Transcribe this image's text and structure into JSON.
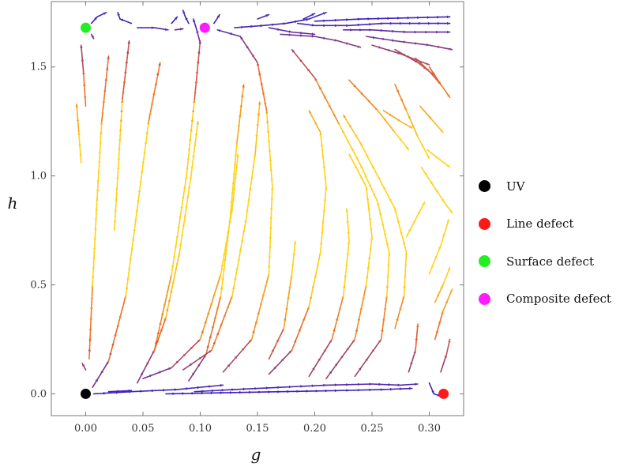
{
  "chart_data": {
    "type": "stream",
    "xlabel": "g",
    "ylabel": "h",
    "xlim": [
      -0.03,
      0.33
    ],
    "ylim": [
      -0.1,
      1.8
    ],
    "x_ticks": [
      0.0,
      0.05,
      0.1,
      0.15,
      0.2,
      0.25,
      0.3
    ],
    "x_tick_labels": [
      "0.00",
      "0.05",
      "0.10",
      "0.15",
      "0.20",
      "0.25",
      "0.30"
    ],
    "y_ticks": [
      0.0,
      0.5,
      1.0,
      1.5
    ],
    "y_tick_labels": [
      "0.0",
      "0.5",
      "1.0",
      "1.5"
    ],
    "color_scale": {
      "low": "#3a1fc0",
      "mid": "#e8622c",
      "high": "#ffd21a"
    },
    "fixed_points": [
      {
        "name": "UV",
        "g": 0.0,
        "h": 0.0,
        "color": "#000000"
      },
      {
        "name": "Line defect",
        "g": 0.3125,
        "h": 0.0,
        "color": "#ff1a1a"
      },
      {
        "name": "Surface defect",
        "g": 0.0,
        "h": 1.68,
        "color": "#22ee22"
      },
      {
        "name": "Composite defect",
        "g": 0.104,
        "h": 1.68,
        "color": "#ff1aff"
      }
    ],
    "legend": {
      "position": "right",
      "items": [
        {
          "label": "UV",
          "color": "#000000"
        },
        {
          "label": "Line defect",
          "color": "#ff1a1a"
        },
        {
          "label": "Surface defect",
          "color": "#22ee22"
        },
        {
          "label": "Composite defect",
          "color": "#ff1aff"
        }
      ]
    },
    "streamlines": [
      {
        "points": [
          [
            -0.004,
            1.06
          ],
          [
            -0.006,
            1.2
          ],
          [
            -0.008,
            1.33
          ]
        ]
      },
      {
        "points": [
          [
            0.0,
            1.32
          ],
          [
            -0.002,
            1.48
          ],
          [
            -0.004,
            1.6
          ]
        ]
      },
      {
        "points": [
          [
            0.003,
            0.16
          ],
          [
            0.006,
            0.5
          ],
          [
            0.01,
            0.9
          ],
          [
            0.014,
            1.25
          ],
          [
            0.02,
            1.55
          ]
        ]
      },
      {
        "points": [
          [
            0.0,
            0.11
          ],
          [
            -0.003,
            0.14
          ]
        ]
      },
      {
        "points": [
          [
            0.025,
            0.75
          ],
          [
            0.028,
            1.0
          ],
          [
            0.032,
            1.35
          ],
          [
            0.038,
            1.62
          ]
        ]
      },
      {
        "points": [
          [
            0.006,
            0.03
          ],
          [
            0.02,
            0.15
          ],
          [
            0.035,
            0.45
          ],
          [
            0.045,
            0.85
          ],
          [
            0.055,
            1.25
          ],
          [
            0.065,
            1.52
          ]
        ]
      },
      {
        "points": [
          [
            0.045,
            0.05
          ],
          [
            0.06,
            0.2
          ],
          [
            0.075,
            0.55
          ],
          [
            0.088,
            1.0
          ],
          [
            0.095,
            1.35
          ],
          [
            0.1,
            1.62
          ]
        ]
      },
      {
        "points": [
          [
            0.06,
            0.2
          ],
          [
            0.07,
            0.35
          ],
          [
            0.082,
            0.65
          ],
          [
            0.092,
            1.0
          ],
          [
            0.098,
            1.25
          ]
        ]
      },
      {
        "points": [
          [
            0.09,
            0.06
          ],
          [
            0.105,
            0.18
          ],
          [
            0.118,
            0.45
          ],
          [
            0.126,
            0.8
          ],
          [
            0.132,
            1.15
          ],
          [
            0.138,
            1.42
          ]
        ]
      },
      {
        "points": [
          [
            0.05,
            0.07
          ],
          [
            0.075,
            0.12
          ],
          [
            0.1,
            0.25
          ],
          [
            0.118,
            0.55
          ],
          [
            0.128,
            0.85
          ],
          [
            0.133,
            1.1
          ]
        ]
      },
      {
        "points": [
          [
            0.085,
            0.11
          ],
          [
            0.11,
            0.2
          ],
          [
            0.128,
            0.45
          ],
          [
            0.14,
            0.8
          ],
          [
            0.148,
            1.1
          ],
          [
            0.152,
            1.34
          ]
        ]
      },
      {
        "points": [
          [
            0.12,
            0.1
          ],
          [
            0.145,
            0.25
          ],
          [
            0.16,
            0.55
          ],
          [
            0.163,
            0.95
          ],
          [
            0.158,
            1.3
          ],
          [
            0.15,
            1.52
          ],
          [
            0.135,
            1.64
          ],
          [
            0.115,
            1.67
          ]
        ]
      },
      {
        "points": [
          [
            0.16,
            0.16
          ],
          [
            0.173,
            0.3
          ],
          [
            0.18,
            0.55
          ],
          [
            0.183,
            0.7
          ]
        ]
      },
      {
        "points": [
          [
            0.16,
            0.09
          ],
          [
            0.18,
            0.2
          ],
          [
            0.195,
            0.4
          ],
          [
            0.205,
            0.65
          ],
          [
            0.21,
            0.95
          ],
          [
            0.205,
            1.2
          ],
          [
            0.195,
            1.3
          ]
        ]
      },
      {
        "points": [
          [
            0.195,
            0.08
          ],
          [
            0.215,
            0.25
          ],
          [
            0.225,
            0.45
          ],
          [
            0.23,
            0.7
          ],
          [
            0.228,
            0.85
          ]
        ]
      },
      {
        "points": [
          [
            0.21,
            0.07
          ],
          [
            0.235,
            0.25
          ],
          [
            0.245,
            0.5
          ],
          [
            0.25,
            0.72
          ],
          [
            0.245,
            0.95
          ],
          [
            0.23,
            1.1
          ]
        ]
      },
      {
        "points": [
          [
            0.235,
            0.08
          ],
          [
            0.258,
            0.25
          ],
          [
            0.263,
            0.45
          ],
          [
            0.265,
            0.65
          ],
          [
            0.255,
            0.88
          ],
          [
            0.24,
            1.05
          ],
          [
            0.22,
            1.25
          ],
          [
            0.2,
            1.45
          ],
          [
            0.18,
            1.58
          ]
        ]
      },
      {
        "points": [
          [
            0.27,
            0.3
          ],
          [
            0.278,
            0.45
          ],
          [
            0.28,
            0.65
          ],
          [
            0.27,
            0.85
          ],
          [
            0.255,
            1.0
          ],
          [
            0.24,
            1.15
          ],
          [
            0.225,
            1.28
          ]
        ]
      },
      {
        "points": [
          [
            0.282,
            0.1
          ],
          [
            0.288,
            0.2
          ],
          [
            0.29,
            0.32
          ]
        ]
      },
      {
        "points": [
          [
            0.28,
            0.72
          ],
          [
            0.288,
            0.8
          ],
          [
            0.296,
            0.88
          ]
        ]
      },
      {
        "points": [
          [
            0.3,
            0.55
          ],
          [
            0.31,
            0.68
          ],
          [
            0.317,
            0.8
          ]
        ]
      },
      {
        "points": [
          [
            0.305,
            0.25
          ],
          [
            0.312,
            0.38
          ],
          [
            0.32,
            0.48
          ]
        ]
      },
      {
        "points": [
          [
            0.305,
            0.42
          ],
          [
            0.312,
            0.5
          ],
          [
            0.318,
            0.58
          ]
        ]
      },
      {
        "points": [
          [
            0.31,
            0.1
          ],
          [
            0.315,
            0.18
          ],
          [
            0.318,
            0.25
          ]
        ]
      },
      {
        "points": [
          [
            0.293,
            1.04
          ],
          [
            0.303,
            0.96
          ],
          [
            0.313,
            0.88
          ],
          [
            0.32,
            0.83
          ]
        ]
      },
      {
        "points": [
          [
            0.298,
            1.12
          ],
          [
            0.308,
            1.08
          ],
          [
            0.318,
            1.04
          ]
        ]
      },
      {
        "points": [
          [
            0.27,
            1.42
          ],
          [
            0.28,
            1.3
          ],
          [
            0.29,
            1.18
          ],
          [
            0.3,
            1.08
          ]
        ]
      },
      {
        "points": [
          [
            0.23,
            1.44
          ],
          [
            0.255,
            1.3
          ],
          [
            0.27,
            1.2
          ],
          [
            0.282,
            1.12
          ]
        ]
      },
      {
        "points": [
          [
            0.26,
            1.3
          ],
          [
            0.275,
            1.25
          ],
          [
            0.285,
            1.22
          ]
        ]
      },
      {
        "points": [
          [
            0.292,
            1.32
          ],
          [
            0.302,
            1.26
          ],
          [
            0.312,
            1.2
          ]
        ]
      },
      {
        "points": [
          [
            0.3,
            1.5
          ],
          [
            0.31,
            1.42
          ],
          [
            0.318,
            1.36
          ]
        ]
      },
      {
        "points": [
          [
            0.288,
            1.54
          ],
          [
            0.3,
            1.48
          ],
          [
            0.31,
            1.42
          ]
        ]
      },
      {
        "points": [
          [
            0.27,
            1.58
          ],
          [
            0.29,
            1.52
          ],
          [
            0.305,
            1.46
          ]
        ]
      },
      {
        "points": [
          [
            0.25,
            1.6
          ],
          [
            0.275,
            1.56
          ],
          [
            0.3,
            1.51
          ]
        ]
      },
      {
        "points": [
          [
            0.245,
            1.64
          ],
          [
            0.27,
            1.62
          ],
          [
            0.3,
            1.6
          ],
          [
            0.32,
            1.58
          ]
        ]
      },
      {
        "points": [
          [
            0.225,
            1.67
          ],
          [
            0.25,
            1.67
          ],
          [
            0.28,
            1.66
          ],
          [
            0.318,
            1.66
          ]
        ]
      },
      {
        "points": [
          [
            0.2,
            1.69
          ],
          [
            0.23,
            1.69
          ],
          [
            0.26,
            1.7
          ],
          [
            0.318,
            1.7
          ]
        ]
      },
      {
        "points": [
          [
            0.2,
            1.71
          ],
          [
            0.24,
            1.72
          ],
          [
            0.318,
            1.73
          ]
        ]
      },
      {
        "points": [
          [
            0.17,
            1.65
          ],
          [
            0.2,
            1.64
          ],
          [
            0.22,
            1.62
          ],
          [
            0.24,
            1.59
          ]
        ]
      },
      {
        "points": [
          [
            0.16,
            1.68
          ],
          [
            0.18,
            1.66
          ],
          [
            0.2,
            1.65
          ]
        ]
      },
      {
        "points": [
          [
            0.185,
            1.7
          ],
          [
            0.2,
            1.69
          ]
        ]
      },
      {
        "points": [
          [
            0.15,
            1.72
          ],
          [
            0.16,
            1.74
          ]
        ]
      },
      {
        "points": [
          [
            0.19,
            1.72
          ],
          [
            0.2,
            1.745
          ]
        ]
      },
      {
        "points": [
          [
            0.13,
            1.68
          ],
          [
            0.155,
            1.69
          ],
          [
            0.175,
            1.7
          ],
          [
            0.195,
            1.72
          ],
          [
            0.21,
            1.75
          ]
        ]
      },
      {
        "points": [
          [
            0.045,
            1.68
          ],
          [
            0.06,
            1.68
          ],
          [
            0.072,
            1.67
          ]
        ]
      },
      {
        "points": [
          [
            0.078,
            1.67
          ],
          [
            0.085,
            1.675
          ]
        ]
      },
      {
        "points": [
          [
            0.09,
            1.7
          ],
          [
            0.087,
            1.73
          ],
          [
            0.085,
            1.76
          ]
        ]
      },
      {
        "points": [
          [
            0.1,
            1.61
          ],
          [
            0.097,
            1.67
          ],
          [
            0.094,
            1.72
          ]
        ]
      },
      {
        "points": [
          [
            0.112,
            1.7
          ],
          [
            0.117,
            1.74
          ]
        ]
      },
      {
        "points": [
          [
            0.075,
            1.7
          ],
          [
            0.08,
            1.73
          ]
        ]
      },
      {
        "points": [
          [
            0.005,
            1.7
          ],
          [
            0.01,
            1.73
          ],
          [
            0.018,
            1.75
          ]
        ]
      },
      {
        "points": [
          [
            0.04,
            1.7
          ],
          [
            0.03,
            1.72
          ],
          [
            0.028,
            1.75
          ]
        ]
      },
      {
        "points": [
          [
            0.005,
            1.65
          ],
          [
            0.007,
            1.63
          ]
        ]
      },
      {
        "points": [
          [
            0.007,
            0.0
          ],
          [
            0.04,
            0.01
          ],
          [
            0.08,
            0.02
          ],
          [
            0.12,
            0.04
          ]
        ]
      },
      {
        "points": [
          [
            0.095,
            0.01
          ],
          [
            0.13,
            0.02
          ],
          [
            0.17,
            0.03
          ],
          [
            0.21,
            0.04
          ],
          [
            0.25,
            0.045
          ],
          [
            0.275,
            0.04
          ],
          [
            0.29,
            0.045
          ]
        ]
      },
      {
        "points": [
          [
            0.07,
            0.0
          ],
          [
            0.12,
            0.005
          ],
          [
            0.17,
            0.01
          ],
          [
            0.22,
            0.015
          ],
          [
            0.26,
            0.02
          ],
          [
            0.285,
            0.025
          ]
        ]
      },
      {
        "points": [
          [
            0.02,
            0.01
          ],
          [
            0.04,
            0.015
          ]
        ]
      },
      {
        "points": [
          [
            0.3,
            0.05
          ],
          [
            0.304,
            0.0
          ],
          [
            0.31,
            -0.01
          ]
        ]
      }
    ]
  }
}
